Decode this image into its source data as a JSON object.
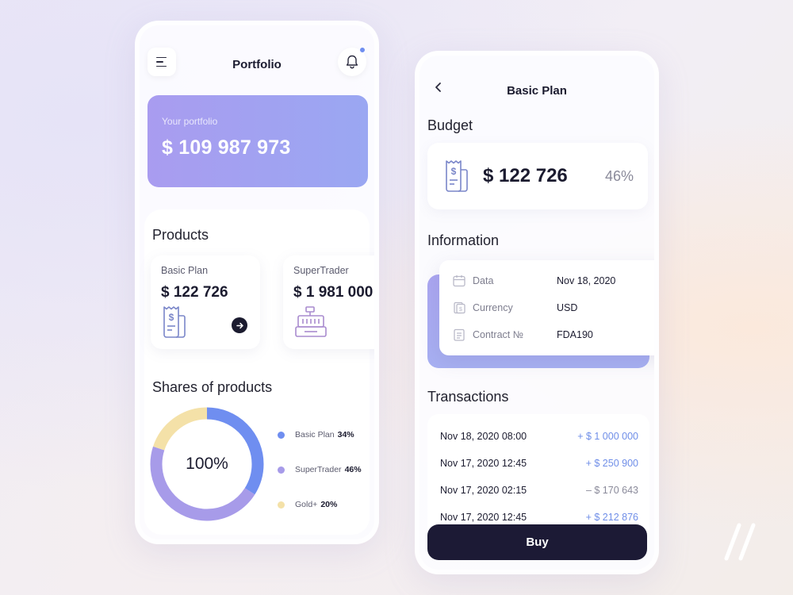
{
  "portfolio": {
    "title": "Portfolio",
    "card_label": "Your portfolio",
    "card_amount": "$ 109 987 973",
    "products_title": "Products",
    "products": [
      {
        "name": "Basic Plan",
        "amount": "$ 122 726"
      },
      {
        "name": "SuperTrader",
        "amount": "$ 1 981 000"
      }
    ],
    "shares_title": "Shares of products",
    "donut_center": "100%",
    "legend": [
      {
        "name": "Basic Plan",
        "pct": "34%",
        "color": "#6f8ef0"
      },
      {
        "name": "SuperTrader",
        "pct": "46%",
        "color": "#a79be9"
      },
      {
        "name": "Gold+",
        "pct": "20%",
        "color": "#f4e1a8"
      }
    ],
    "notification_color": "#6f8ef0"
  },
  "plan": {
    "title": "Basic Plan",
    "budget_title": "Budget",
    "budget_amount": "$ 122 726",
    "budget_pct": "46%",
    "information_title": "Information",
    "info": [
      {
        "icon": "calendar-icon",
        "label": "Data",
        "value": "Nov 18, 2020"
      },
      {
        "icon": "currency-icon",
        "label": "Currency",
        "value": "USD"
      },
      {
        "icon": "contract-icon",
        "label": "Contract №",
        "value": "FDA190"
      }
    ],
    "transactions_title": "Transactions",
    "transactions": [
      {
        "date": "Nov 18, 2020 08:00",
        "amount": "+ $ 1 000 000",
        "sign": "pos"
      },
      {
        "date": "Nov 17, 2020 12:45",
        "amount": "+ $ 250 900",
        "sign": "pos"
      },
      {
        "date": "Nov 17, 2020 02:15",
        "amount": "– $ 170 643",
        "sign": "neg"
      },
      {
        "date": "Nov 17, 2020 12:45",
        "amount": "+ $ 212 876",
        "sign": "pos"
      }
    ],
    "buy_label": "Buy"
  },
  "colors": {
    "accent_blue": "#6f8ef0",
    "accent_purple": "#a79be9",
    "gold": "#f4e1a8",
    "dark_button": "#1c1a35"
  }
}
